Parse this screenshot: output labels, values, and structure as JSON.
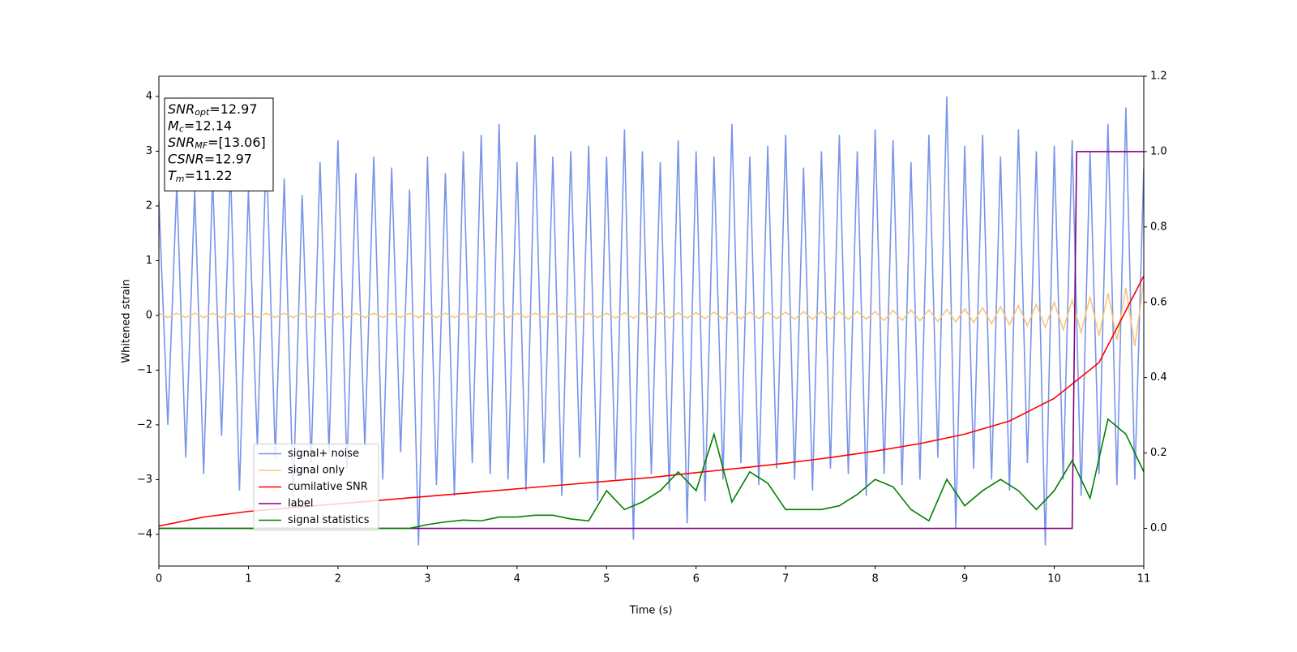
{
  "chart_data": {
    "type": "line",
    "xlabel": "Time (s)",
    "ylabel": "Whitened strain",
    "xlim": [
      0,
      11
    ],
    "xticks": [
      0,
      1,
      2,
      3,
      4,
      5,
      6,
      7,
      8,
      9,
      10,
      11
    ],
    "ylim": [
      -4.58,
      4.37
    ],
    "yticks": [
      {
        "value": -4,
        "label": "−4"
      },
      {
        "value": -3,
        "label": "−3"
      },
      {
        "value": -2,
        "label": "−2"
      },
      {
        "value": -1,
        "label": "−1"
      },
      0,
      1,
      2,
      3,
      4
    ],
    "y2lim": [
      -0.1,
      1.2
    ],
    "y2ticks": [
      {
        "value": 0,
        "label": "0.0"
      },
      0.2,
      0.4,
      0.6,
      0.8,
      {
        "value": 1,
        "label": "1.0"
      },
      1.2
    ],
    "legend": "lower left",
    "info_box": [
      {
        "name": "SNR",
        "sub": "opt",
        "text": "=12.97"
      },
      {
        "name": "M",
        "sub": "c",
        "text": "=12.14"
      },
      {
        "name": "SNR",
        "sub": "MF",
        "text": "=[13.06]"
      },
      {
        "name": "CSNR",
        "sub": null,
        "text": "=12.97"
      },
      {
        "name": "T",
        "sub": "m",
        "text": "=11.22"
      }
    ],
    "x": [
      0,
      0.1,
      0.2,
      0.3,
      0.4,
      0.5,
      0.6,
      0.7,
      0.8,
      0.9,
      1,
      1.1,
      1.2,
      1.3,
      1.4,
      1.5,
      1.6,
      1.7,
      1.8,
      1.9,
      2,
      2.1,
      2.2,
      2.3,
      2.4,
      2.5,
      2.6,
      2.7,
      2.8,
      2.9,
      3,
      3.1,
      3.2,
      3.3,
      3.4,
      3.5,
      3.6,
      3.7,
      3.8,
      3.9,
      4,
      4.1,
      4.2,
      4.3,
      4.4,
      4.5,
      4.6,
      4.7,
      4.8,
      4.9,
      5,
      5.1,
      5.2,
      5.3,
      5.4,
      5.5,
      5.6,
      5.7,
      5.8,
      5.9,
      6,
      6.1,
      6.2,
      6.3,
      6.4,
      6.5,
      6.6,
      6.7,
      6.8,
      6.9,
      7,
      7.1,
      7.2,
      7.3,
      7.4,
      7.5,
      7.6,
      7.7,
      7.8,
      7.9,
      8,
      8.1,
      8.2,
      8.3,
      8.4,
      8.5,
      8.6,
      8.7,
      8.8,
      8.9,
      9,
      9.1,
      9.2,
      9.3,
      9.4,
      9.5,
      9.6,
      9.7,
      9.8,
      9.9,
      10,
      10.1,
      10.2,
      10.3,
      10.4,
      10.5,
      10.6,
      10.7,
      10.8,
      10.9,
      11
    ],
    "series": [
      {
        "name": "signal+ noise",
        "color": "#7994e8",
        "values": [
          2.1,
          -2.0,
          2.4,
          -2.6,
          2.3,
          -2.9,
          2.5,
          -2.2,
          2.7,
          -3.2,
          2.3,
          -2.4,
          3.1,
          -2.6,
          2.5,
          -3.3,
          2.2,
          -2.7,
          2.8,
          -2.5,
          3.2,
          -2.8,
          2.6,
          -2.4,
          2.9,
          -3.0,
          2.7,
          -2.5,
          2.3,
          -4.2,
          2.9,
          -3.1,
          2.6,
          -3.3,
          3.0,
          -2.7,
          3.3,
          -2.9,
          3.5,
          -3.0,
          2.8,
          -3.2,
          3.3,
          -2.7,
          2.9,
          -3.3,
          3.0,
          -2.6,
          3.1,
          -3.4,
          2.9,
          -3.0,
          3.4,
          -4.1,
          3.0,
          -2.9,
          2.8,
          -3.2,
          3.2,
          -3.8,
          3.0,
          -3.4,
          2.9,
          -3.0,
          3.5,
          -2.7,
          2.9,
          -3.1,
          3.1,
          -2.8,
          3.3,
          -3.0,
          2.7,
          -3.2,
          3.0,
          -2.8,
          3.3,
          -2.9,
          3.0,
          -3.3,
          3.4,
          -2.9,
          3.2,
          -3.1,
          2.8,
          -3.0,
          3.3,
          -2.6,
          4.0,
          -3.9,
          3.1,
          -2.8,
          3.3,
          -3.0,
          2.9,
          -3.2,
          3.4,
          -2.7,
          3.0,
          -4.2,
          3.1,
          -3.0,
          3.2,
          -3.3,
          3.0,
          -2.9,
          3.5,
          -3.1,
          3.8,
          -3.0,
          2.7
        ]
      },
      {
        "name": "signal only",
        "color": "#f7c57c",
        "values": [
          0.04,
          -0.04,
          0.04,
          -0.04,
          0.04,
          -0.04,
          0.04,
          -0.04,
          0.04,
          -0.04,
          0.04,
          -0.04,
          0.04,
          -0.04,
          0.04,
          -0.04,
          0.04,
          -0.04,
          0.04,
          -0.04,
          0.04,
          -0.04,
          0.04,
          -0.04,
          0.04,
          -0.04,
          0.04,
          -0.04,
          0.04,
          -0.04,
          0.04,
          -0.04,
          0.04,
          -0.04,
          0.04,
          -0.04,
          0.04,
          -0.04,
          0.04,
          -0.04,
          0.04,
          -0.04,
          0.04,
          -0.04,
          0.04,
          -0.04,
          0.04,
          -0.04,
          0.04,
          -0.04,
          0.04,
          -0.05,
          0.05,
          -0.05,
          0.05,
          -0.05,
          0.05,
          -0.05,
          0.05,
          -0.05,
          0.05,
          -0.06,
          0.06,
          -0.06,
          0.06,
          -0.06,
          0.06,
          -0.06,
          0.06,
          -0.06,
          0.06,
          -0.07,
          0.07,
          -0.07,
          0.07,
          -0.07,
          0.07,
          -0.07,
          0.07,
          -0.07,
          0.07,
          -0.09,
          0.09,
          -0.09,
          0.1,
          -0.1,
          0.1,
          -0.11,
          0.11,
          -0.12,
          0.12,
          -0.13,
          0.14,
          -0.15,
          0.16,
          -0.17,
          0.18,
          -0.19,
          0.2,
          -0.22,
          0.24,
          -0.26,
          0.28,
          -0.31,
          0.34,
          -0.37,
          0.41,
          -0.45,
          0.5,
          -0.56,
          0.62
        ]
      },
      {
        "name": "cumilative SNR",
        "color": "#ff0000",
        "axis": "y2",
        "x": [
          0,
          0.5,
          1,
          1.5,
          2,
          2.5,
          3,
          3.5,
          4,
          4.5,
          5,
          5.5,
          6,
          6.5,
          7,
          7.5,
          8,
          8.5,
          9,
          9.5,
          10,
          10.5,
          11
        ],
        "values": [
          0.006,
          0.03,
          0.045,
          0.055,
          0.065,
          0.075,
          0.085,
          0.095,
          0.105,
          0.115,
          0.125,
          0.135,
          0.148,
          0.16,
          0.173,
          0.188,
          0.205,
          0.225,
          0.25,
          0.285,
          0.345,
          0.44,
          0.67
        ]
      },
      {
        "name": "label",
        "color": "#800080",
        "axis": "y2",
        "x": [
          0,
          10.2,
          10.25,
          11
        ],
        "values": [
          0,
          0,
          1,
          1
        ]
      },
      {
        "name": "signal statistics",
        "color": "#008000",
        "axis": "y2",
        "x": [
          0,
          0.2,
          0.4,
          0.6,
          0.8,
          1,
          1.2,
          1.4,
          1.6,
          1.8,
          2,
          2.2,
          2.4,
          2.6,
          2.8,
          3,
          3.2,
          3.4,
          3.6,
          3.8,
          4,
          4.2,
          4.4,
          4.6,
          4.8,
          5,
          5.2,
          5.4,
          5.6,
          5.8,
          6,
          6.2,
          6.4,
          6.6,
          6.8,
          7,
          7.2,
          7.4,
          7.6,
          7.8,
          8,
          8.2,
          8.4,
          8.6,
          8.8,
          9,
          9.2,
          9.4,
          9.6,
          9.8,
          10,
          10.2,
          10.4,
          10.6,
          10.8,
          11
        ],
        "values": [
          0,
          0,
          0,
          0,
          0,
          0,
          0,
          0,
          0,
          0,
          0,
          0,
          0,
          0,
          0,
          0.01,
          0.017,
          0.022,
          0.02,
          0.03,
          0.03,
          0.035,
          0.035,
          0.025,
          0.02,
          0.1,
          0.05,
          0.07,
          0.1,
          0.15,
          0.1,
          0.25,
          0.07,
          0.15,
          0.12,
          0.05,
          0.05,
          0.05,
          0.06,
          0.09,
          0.13,
          0.11,
          0.05,
          0.02,
          0.13,
          0.06,
          0.1,
          0.13,
          0.1,
          0.05,
          0.1,
          0.18,
          0.08,
          0.29,
          0.25,
          0.15
        ]
      }
    ]
  }
}
